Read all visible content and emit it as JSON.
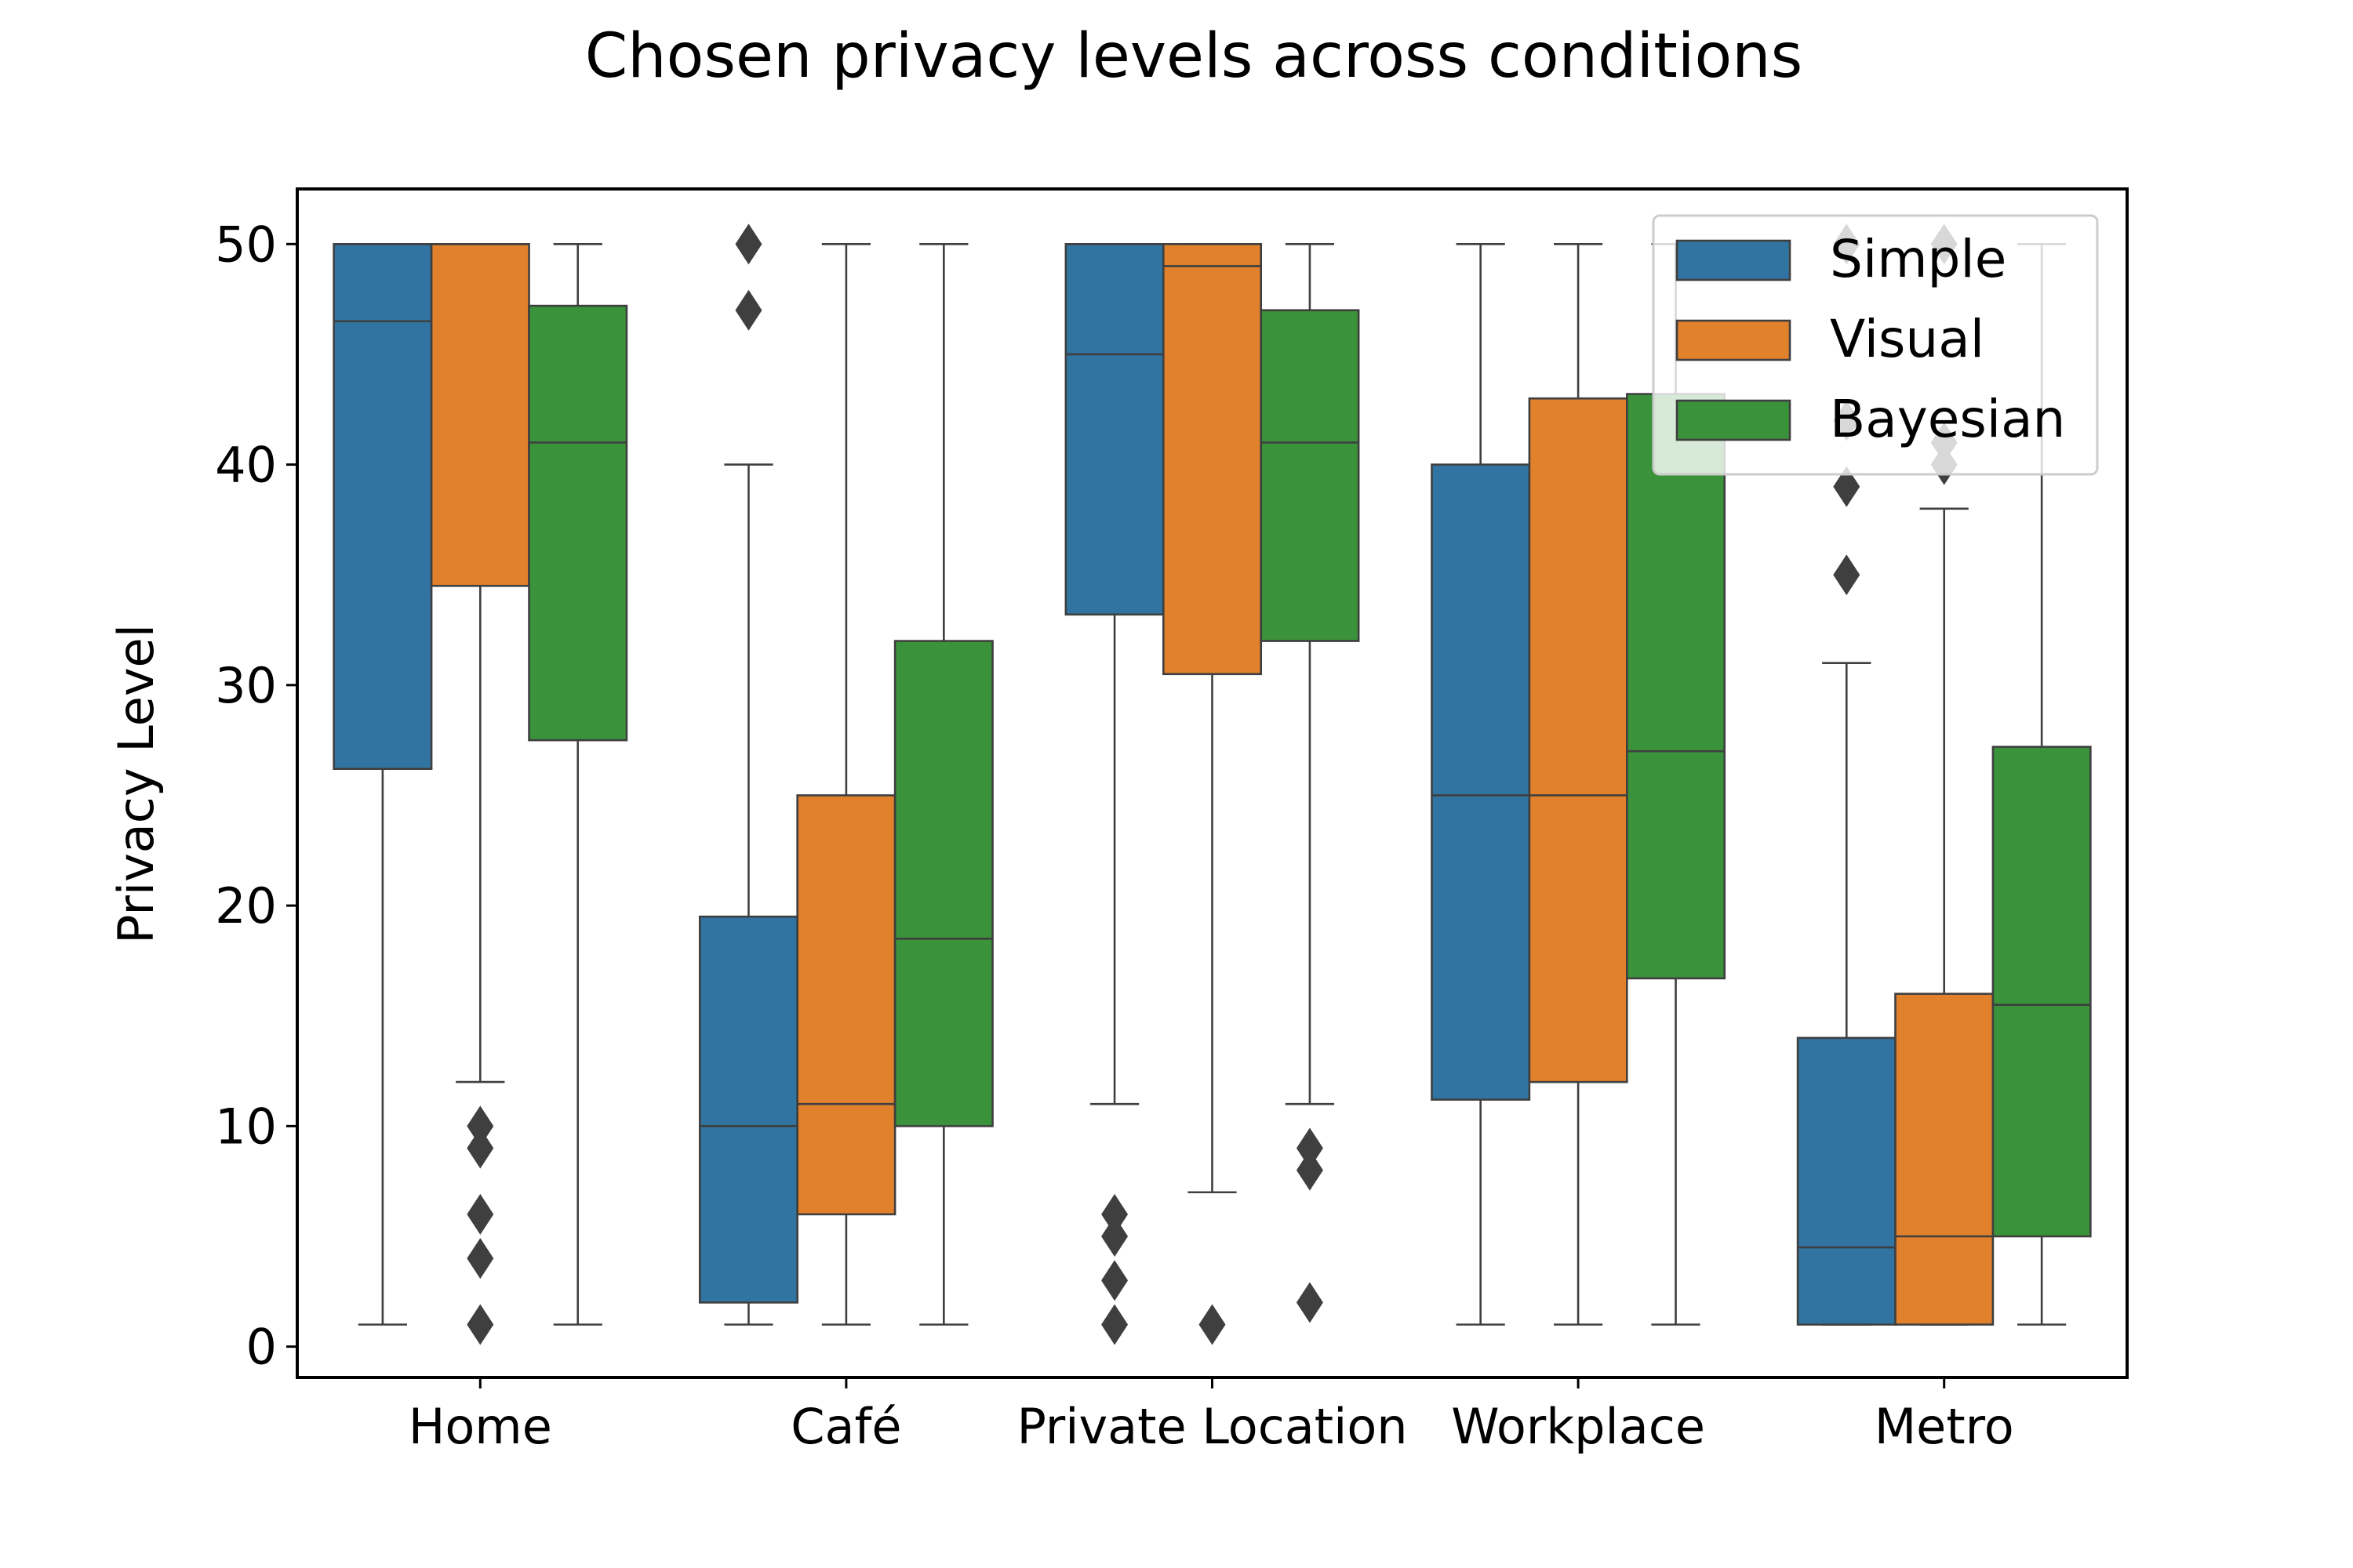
{
  "chart_data": {
    "type": "box",
    "title": "Chosen privacy levels across conditions",
    "xlabel": "",
    "ylabel": "Privacy Level",
    "categories": [
      "Home",
      "Café",
      "Private Location",
      "Workplace",
      "Metro"
    ],
    "yticks": [
      0,
      10,
      20,
      30,
      40,
      50
    ],
    "ylim": [
      -1.4,
      52.5
    ],
    "legend_position": "top-right",
    "series": [
      {
        "name": "Simple",
        "color": "#3274a1",
        "boxes": [
          {
            "whisker_low": 1,
            "q1": 26.2,
            "median": 46.5,
            "q3": 50,
            "whisker_high": 50,
            "outliers": []
          },
          {
            "whisker_low": 1,
            "q1": 2,
            "median": 10,
            "q3": 19.5,
            "whisker_high": 40,
            "outliers": [
              47,
              50
            ]
          },
          {
            "whisker_low": 11,
            "q1": 33.2,
            "median": 45,
            "q3": 50,
            "whisker_high": 50,
            "outliers": [
              1,
              3,
              5,
              6
            ]
          },
          {
            "whisker_low": 1,
            "q1": 11.2,
            "median": 25,
            "q3": 40,
            "whisker_high": 50,
            "outliers": []
          },
          {
            "whisker_low": 1,
            "q1": 1,
            "median": 4.5,
            "q3": 14,
            "whisker_high": 31,
            "outliers": [
              35,
              39,
              42,
              50
            ]
          }
        ]
      },
      {
        "name": "Visual",
        "color": "#e1812c",
        "boxes": [
          {
            "whisker_low": 12,
            "q1": 34.5,
            "median": 50,
            "q3": 50,
            "whisker_high": 50,
            "outliers": [
              1,
              4,
              6,
              9,
              10
            ]
          },
          {
            "whisker_low": 1,
            "q1": 6,
            "median": 11,
            "q3": 25,
            "whisker_high": 50,
            "outliers": []
          },
          {
            "whisker_low": 7,
            "q1": 30.5,
            "median": 49,
            "q3": 50,
            "whisker_high": 50,
            "outliers": [
              1
            ]
          },
          {
            "whisker_low": 1,
            "q1": 12,
            "median": 25,
            "q3": 43,
            "whisker_high": 50,
            "outliers": []
          },
          {
            "whisker_low": 1,
            "q1": 1,
            "median": 5,
            "q3": 16,
            "whisker_high": 38,
            "outliers": [
              40,
              41,
              50
            ]
          }
        ]
      },
      {
        "name": "Bayesian",
        "color": "#3a923a",
        "boxes": [
          {
            "whisker_low": 1,
            "q1": 27.5,
            "median": 41,
            "q3": 47.2,
            "whisker_high": 50,
            "outliers": []
          },
          {
            "whisker_low": 1,
            "q1": 10,
            "median": 18.5,
            "q3": 32,
            "whisker_high": 50,
            "outliers": []
          },
          {
            "whisker_low": 11,
            "q1": 32,
            "median": 41,
            "q3": 47,
            "whisker_high": 50,
            "outliers": [
              2,
              8,
              9
            ]
          },
          {
            "whisker_low": 1,
            "q1": 16.7,
            "median": 27,
            "q3": 43.2,
            "whisker_high": 50,
            "outliers": []
          },
          {
            "whisker_low": 1,
            "q1": 5,
            "median": 15.5,
            "q3": 27.2,
            "whisker_high": 50,
            "outliers": []
          }
        ]
      }
    ]
  }
}
